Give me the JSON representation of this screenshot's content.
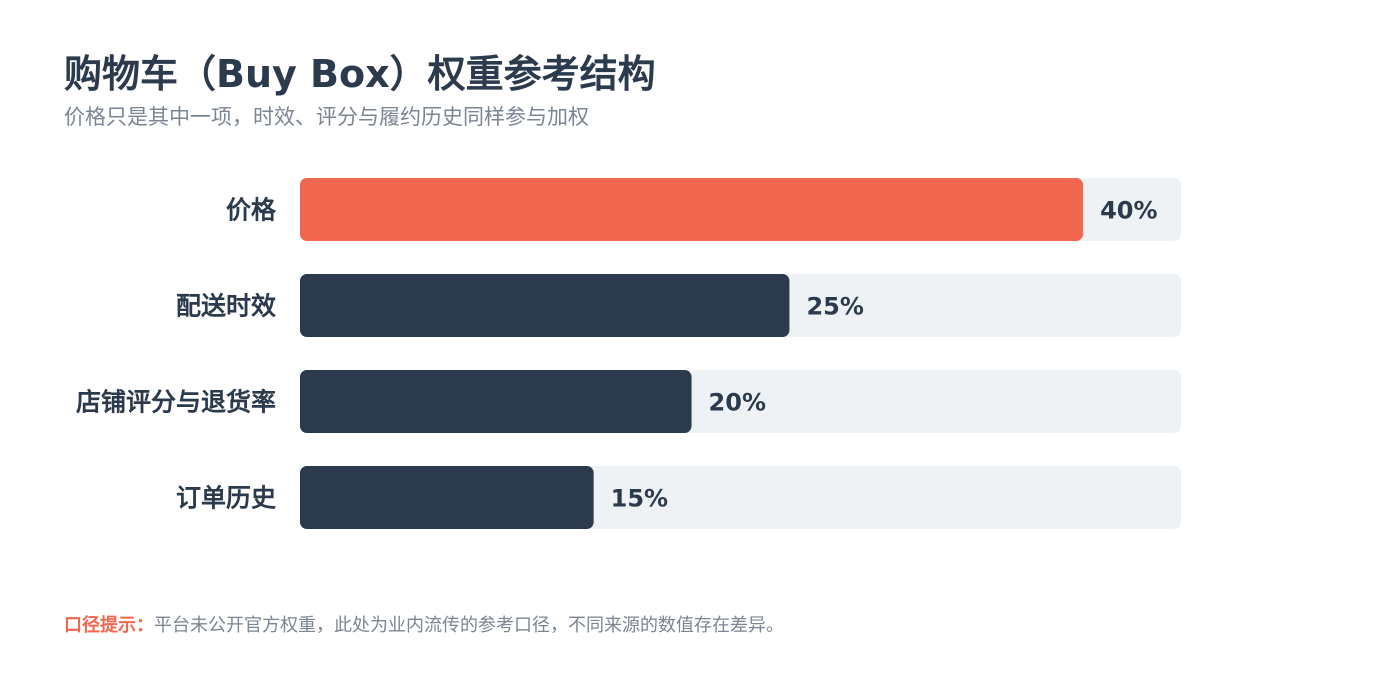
{
  "title": "购物车（Buy Box）权重参考结构",
  "subtitle": "价格只是其中一项，时效、评分与履约历史同样参与加权",
  "colors": {
    "highlight": "#f2674f",
    "bar": "#2b3a4d",
    "track": "#eef2f5",
    "label": "#2b3a4d"
  },
  "chart_data": {
    "type": "bar",
    "orientation": "horizontal",
    "categories": [
      "价格",
      "配送时效",
      "店铺评分与退货率",
      "订单历史"
    ],
    "values": [
      40,
      25,
      20,
      15
    ],
    "value_labels": [
      "40%",
      "25%",
      "20%",
      "15%"
    ],
    "highlight_index": 0,
    "xlim": [
      0,
      45
    ],
    "grid": false
  },
  "footnote": {
    "label": "口径提示：",
    "text": "平台未公开官方权重，此处为业内流传的参考口径，不同来源的数值存在差异。"
  }
}
